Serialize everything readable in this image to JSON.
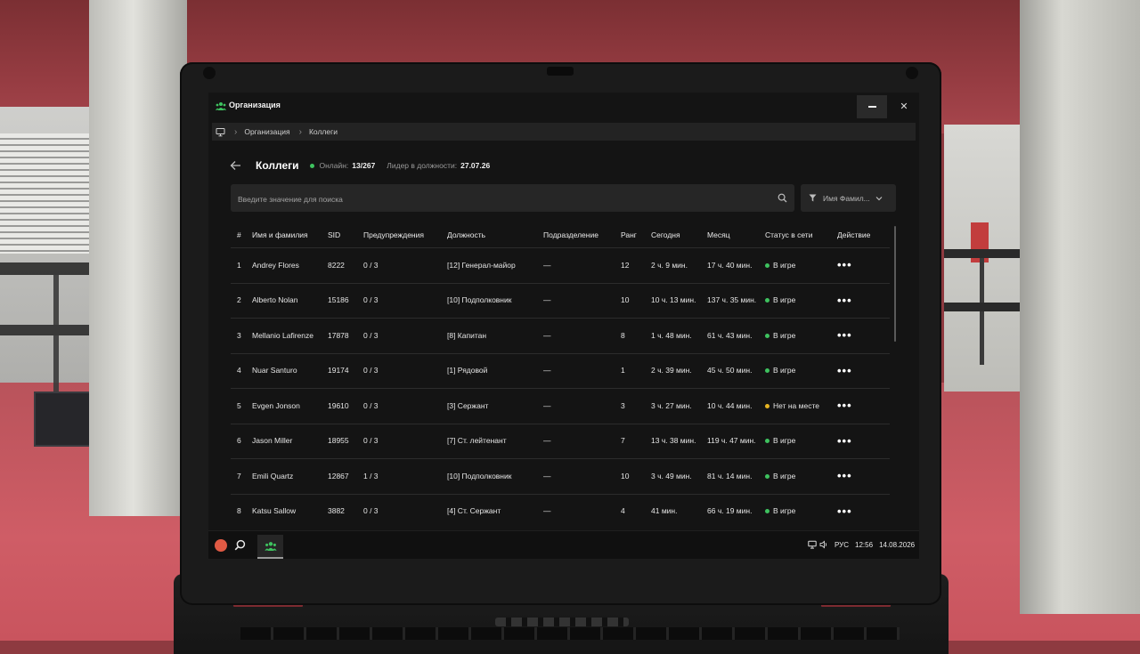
{
  "window": {
    "title": "Организация",
    "minimize_label": "",
    "close_label": "✕"
  },
  "breadcrumb": {
    "items": [
      "Организация",
      "Коллеги"
    ]
  },
  "header": {
    "title": "Коллеги",
    "online_label": "Онлайн:",
    "online_value": "13/267",
    "leader_label": "Лидер в должности:",
    "leader_value": "27.07.26"
  },
  "search": {
    "placeholder": "Введите значение для поиска",
    "value": ""
  },
  "filter": {
    "selected": "Имя Фамил..."
  },
  "table": {
    "columns": [
      "#",
      "Имя и фамилия",
      "SID",
      "Предупреждения",
      "Должность",
      "Подразделение",
      "Ранг",
      "Сегодня",
      "Месяц",
      "Статус в сети",
      "Действие"
    ],
    "rows": [
      {
        "n": "1",
        "name": "Andrey Flores",
        "sid": "8222",
        "warn": "0 / 3",
        "position": "[12] Генерал-майор",
        "dept": "—",
        "rank": "12",
        "today": "2 ч. 9 мин.",
        "month": "17 ч. 40 мин.",
        "status": "В игре",
        "status_color": "#3ec25f",
        "action": "•••"
      },
      {
        "n": "2",
        "name": "Alberto Nolan",
        "sid": "15186",
        "warn": "0 / 3",
        "position": "[10] Подполковник",
        "dept": "—",
        "rank": "10",
        "today": "10 ч. 13 мин.",
        "month": "137 ч. 35 мин.",
        "status": "В игре",
        "status_color": "#3ec25f",
        "action": "•••"
      },
      {
        "n": "3",
        "name": "Mellanio Lafirenze",
        "sid": "17878",
        "warn": "0 / 3",
        "position": "[8] Капитан",
        "dept": "—",
        "rank": "8",
        "today": "1 ч. 48 мин.",
        "month": "61 ч. 43 мин.",
        "status": "В игре",
        "status_color": "#3ec25f",
        "action": "•••"
      },
      {
        "n": "4",
        "name": "Nuar Santuro",
        "sid": "19174",
        "warn": "0 / 3",
        "position": "[1] Рядовой",
        "dept": "—",
        "rank": "1",
        "today": "2 ч. 39 мин.",
        "month": "45 ч. 50 мин.",
        "status": "В игре",
        "status_color": "#3ec25f",
        "action": "•••"
      },
      {
        "n": "5",
        "name": "Evgen Jonson",
        "sid": "19610",
        "warn": "0 / 3",
        "position": "[3] Сержант",
        "dept": "—",
        "rank": "3",
        "today": "3 ч. 27 мин.",
        "month": "10 ч. 44 мин.",
        "status": "Нет на месте",
        "status_color": "#e6b422",
        "action": "•••"
      },
      {
        "n": "6",
        "name": "Jason Miller",
        "sid": "18955",
        "warn": "0 / 3",
        "position": "[7] Ст. лейтенант",
        "dept": "—",
        "rank": "7",
        "today": "13 ч. 38 мин.",
        "month": "119 ч. 47 мин.",
        "status": "В игре",
        "status_color": "#3ec25f",
        "action": "•••"
      },
      {
        "n": "7",
        "name": "Emili Quartz",
        "sid": "12867",
        "warn": "1 / 3",
        "position": "[10] Подполковник",
        "dept": "—",
        "rank": "10",
        "today": "3 ч. 49 мин.",
        "month": "81 ч. 14 мин.",
        "status": "В игре",
        "status_color": "#3ec25f",
        "action": "•••"
      },
      {
        "n": "8",
        "name": "Katsu Sallow",
        "sid": "3882",
        "warn": "0 / 3",
        "position": "[4] Ст. Сержант",
        "dept": "—",
        "rank": "4",
        "today": "41 мин.",
        "month": "66 ч. 19 мин.",
        "status": "В игре",
        "status_color": "#3ec25f",
        "action": "•••"
      }
    ]
  },
  "taskbar": {
    "language": "РУС",
    "time": "12:56",
    "date": "14.08.2026"
  },
  "icons": {
    "app": "people-group-icon",
    "breadcrumb_root": "monitor-icon",
    "back": "arrow-left-icon",
    "search": "search-icon",
    "filter": "funnel-icon",
    "filter_dropdown": "chevron-down-icon",
    "taskbar_logo": "logo-icon",
    "taskbar_search": "search-icon",
    "tray_display": "monitor-icon",
    "tray_volume": "speaker-icon"
  },
  "colors": {
    "online": "#3ec25f",
    "away": "#e6b422",
    "app_green": "#3ec25f",
    "background": "#141414",
    "panel": "#262626"
  }
}
